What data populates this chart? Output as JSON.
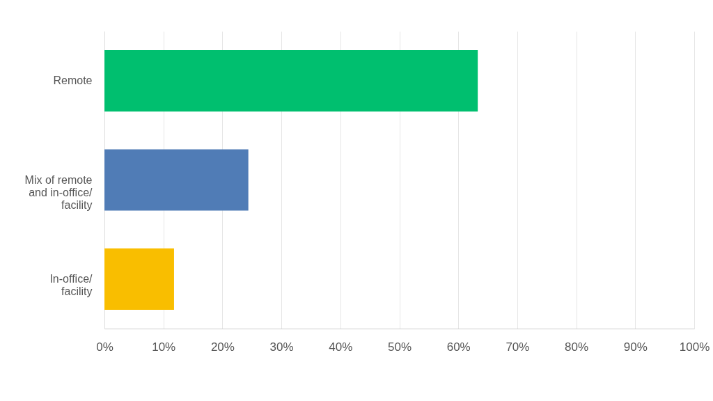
{
  "chart_data": {
    "type": "bar",
    "orientation": "horizontal",
    "categories": [
      "Remote",
      "Mix of remote\nand in-office/\nfacility",
      "In-office/\nfacility"
    ],
    "values": [
      63.3,
      24.4,
      11.8
    ],
    "colors": [
      "#00bf6f",
      "#507cb6",
      "#f9be00"
    ],
    "xlim": [
      0,
      100
    ],
    "xticks": [
      {
        "value": 0,
        "label": "0%"
      },
      {
        "value": 10,
        "label": "10%"
      },
      {
        "value": 20,
        "label": "20%"
      },
      {
        "value": 30,
        "label": "30%"
      },
      {
        "value": 40,
        "label": "40%"
      },
      {
        "value": 50,
        "label": "50%"
      },
      {
        "value": 60,
        "label": "60%"
      },
      {
        "value": 70,
        "label": "70%"
      },
      {
        "value": 80,
        "label": "80%"
      },
      {
        "value": 90,
        "label": "90%"
      },
      {
        "value": 100,
        "label": "100%"
      }
    ],
    "grid": "x",
    "legend": false
  }
}
